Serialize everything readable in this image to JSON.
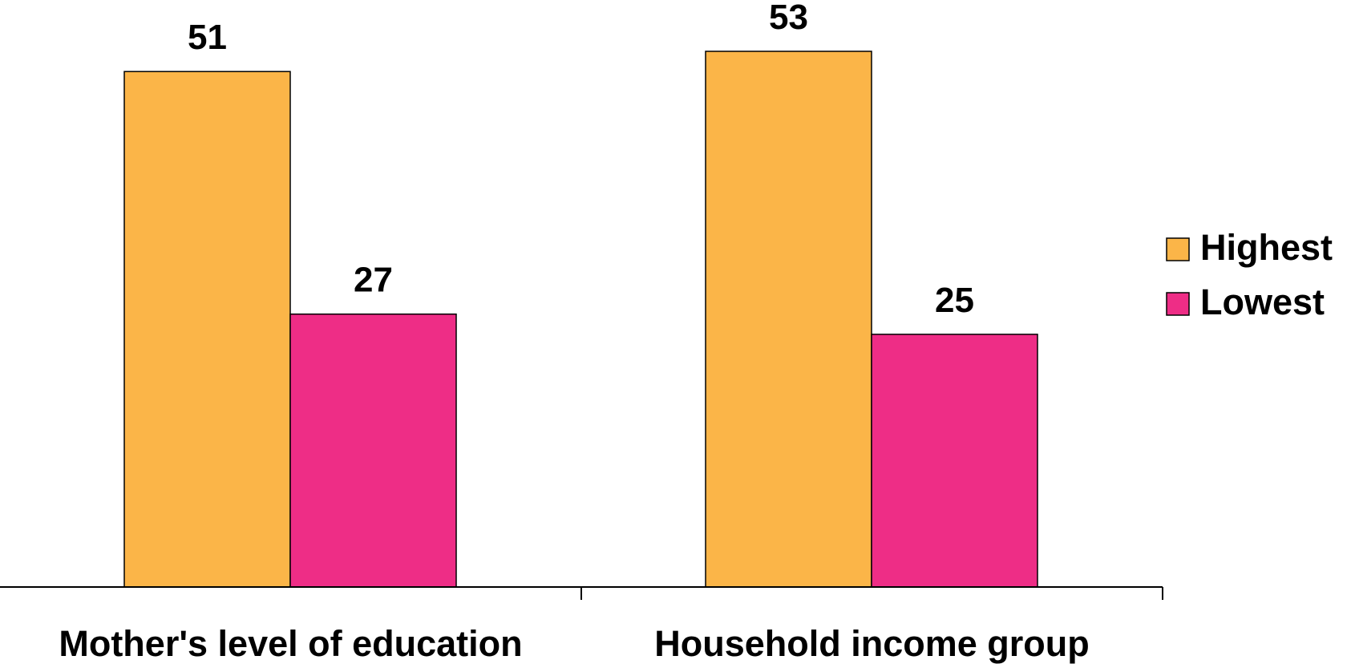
{
  "chart_data": {
    "type": "bar",
    "title": "",
    "xlabel": "",
    "ylabel": "",
    "categories": [
      "Mother's level of education",
      "Household income group"
    ],
    "series": [
      {
        "name": "Highest",
        "values": [
          51,
          53
        ],
        "color": "#FBB548"
      },
      {
        "name": "Lowest",
        "values": [
          27,
          25
        ],
        "color": "#EE2D86"
      }
    ],
    "ylim": [
      0,
      53
    ],
    "grid": false,
    "data_labels": true,
    "legend_position": "right"
  }
}
